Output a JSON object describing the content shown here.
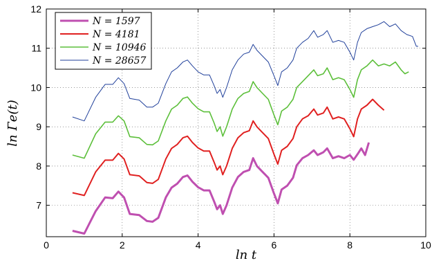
{
  "chart_data": {
    "type": "line",
    "xlabel": "ln t",
    "ylabel": "ln Γe(t)",
    "xlim": [
      0,
      10
    ],
    "ylim": [
      6.2,
      12
    ],
    "xticks": [
      0,
      2,
      4,
      6,
      8,
      10
    ],
    "yticks": [
      7,
      8,
      9,
      10,
      11,
      12
    ],
    "xtick_labels": [
      "0",
      "2",
      "4",
      "6",
      "8",
      "10"
    ],
    "ytick_labels": [
      "7",
      "8",
      "9",
      "10",
      "11",
      "12"
    ],
    "grid": true,
    "legend_position": "top-left",
    "series": [
      {
        "name": "N = 1597",
        "color": "#bf4fb0",
        "points": [
          [
            0.69,
            6.35
          ],
          [
            1.0,
            6.28
          ],
          [
            1.3,
            6.85
          ],
          [
            1.55,
            7.2
          ],
          [
            1.75,
            7.18
          ],
          [
            1.9,
            7.35
          ],
          [
            2.05,
            7.2
          ],
          [
            2.2,
            6.78
          ],
          [
            2.45,
            6.75
          ],
          [
            2.65,
            6.6
          ],
          [
            2.8,
            6.58
          ],
          [
            2.95,
            6.68
          ],
          [
            3.15,
            7.2
          ],
          [
            3.3,
            7.45
          ],
          [
            3.45,
            7.55
          ],
          [
            3.6,
            7.72
          ],
          [
            3.72,
            7.76
          ],
          [
            3.85,
            7.6
          ],
          [
            4.0,
            7.46
          ],
          [
            4.15,
            7.38
          ],
          [
            4.3,
            7.38
          ],
          [
            4.42,
            7.1
          ],
          [
            4.5,
            6.9
          ],
          [
            4.58,
            7.0
          ],
          [
            4.65,
            6.78
          ],
          [
            4.75,
            7.0
          ],
          [
            4.9,
            7.45
          ],
          [
            5.05,
            7.72
          ],
          [
            5.2,
            7.85
          ],
          [
            5.35,
            7.9
          ],
          [
            5.45,
            8.2
          ],
          [
            5.55,
            8.0
          ],
          [
            5.7,
            7.85
          ],
          [
            5.85,
            7.7
          ],
          [
            6.0,
            7.3
          ],
          [
            6.1,
            7.05
          ],
          [
            6.2,
            7.4
          ],
          [
            6.35,
            7.5
          ],
          [
            6.5,
            7.7
          ],
          [
            6.6,
            8.02
          ],
          [
            6.75,
            8.2
          ],
          [
            6.9,
            8.28
          ],
          [
            7.05,
            8.4
          ],
          [
            7.15,
            8.28
          ],
          [
            7.3,
            8.35
          ],
          [
            7.4,
            8.45
          ],
          [
            7.55,
            8.2
          ],
          [
            7.7,
            8.25
          ],
          [
            7.85,
            8.2
          ],
          [
            8.0,
            8.28
          ],
          [
            8.1,
            8.16
          ],
          [
            8.2,
            8.3
          ],
          [
            8.3,
            8.45
          ],
          [
            8.4,
            8.28
          ],
          [
            8.5,
            8.6
          ]
        ]
      },
      {
        "name": "N = 4181",
        "color": "#e02020",
        "points": [
          [
            0.69,
            7.32
          ],
          [
            1.0,
            7.25
          ],
          [
            1.3,
            7.85
          ],
          [
            1.55,
            8.15
          ],
          [
            1.75,
            8.15
          ],
          [
            1.9,
            8.32
          ],
          [
            2.05,
            8.18
          ],
          [
            2.2,
            7.78
          ],
          [
            2.45,
            7.75
          ],
          [
            2.65,
            7.58
          ],
          [
            2.8,
            7.56
          ],
          [
            2.95,
            7.66
          ],
          [
            3.15,
            8.18
          ],
          [
            3.3,
            8.45
          ],
          [
            3.45,
            8.55
          ],
          [
            3.6,
            8.72
          ],
          [
            3.72,
            8.76
          ],
          [
            3.85,
            8.6
          ],
          [
            4.0,
            8.46
          ],
          [
            4.15,
            8.38
          ],
          [
            4.3,
            8.38
          ],
          [
            4.42,
            8.1
          ],
          [
            4.5,
            7.9
          ],
          [
            4.58,
            8.0
          ],
          [
            4.65,
            7.78
          ],
          [
            4.75,
            8.0
          ],
          [
            4.9,
            8.45
          ],
          [
            5.05,
            8.72
          ],
          [
            5.2,
            8.85
          ],
          [
            5.35,
            8.9
          ],
          [
            5.45,
            9.15
          ],
          [
            5.55,
            9.0
          ],
          [
            5.7,
            8.85
          ],
          [
            5.85,
            8.7
          ],
          [
            6.0,
            8.3
          ],
          [
            6.1,
            8.05
          ],
          [
            6.2,
            8.4
          ],
          [
            6.35,
            8.5
          ],
          [
            6.5,
            8.7
          ],
          [
            6.6,
            9.0
          ],
          [
            6.75,
            9.2
          ],
          [
            6.9,
            9.28
          ],
          [
            7.05,
            9.45
          ],
          [
            7.15,
            9.3
          ],
          [
            7.3,
            9.35
          ],
          [
            7.4,
            9.5
          ],
          [
            7.55,
            9.2
          ],
          [
            7.7,
            9.25
          ],
          [
            7.85,
            9.2
          ],
          [
            8.0,
            8.95
          ],
          [
            8.1,
            8.75
          ],
          [
            8.2,
            9.2
          ],
          [
            8.3,
            9.45
          ],
          [
            8.45,
            9.55
          ],
          [
            8.6,
            9.7
          ],
          [
            8.75,
            9.55
          ],
          [
            8.9,
            9.42
          ]
        ]
      },
      {
        "name": "N = 10946",
        "color": "#5cbf3a",
        "points": [
          [
            0.69,
            8.28
          ],
          [
            1.0,
            8.2
          ],
          [
            1.3,
            8.82
          ],
          [
            1.55,
            9.12
          ],
          [
            1.75,
            9.12
          ],
          [
            1.9,
            9.28
          ],
          [
            2.05,
            9.15
          ],
          [
            2.2,
            8.75
          ],
          [
            2.45,
            8.72
          ],
          [
            2.65,
            8.55
          ],
          [
            2.8,
            8.54
          ],
          [
            2.95,
            8.64
          ],
          [
            3.15,
            9.15
          ],
          [
            3.3,
            9.45
          ],
          [
            3.45,
            9.55
          ],
          [
            3.6,
            9.72
          ],
          [
            3.72,
            9.76
          ],
          [
            3.85,
            9.6
          ],
          [
            4.0,
            9.46
          ],
          [
            4.15,
            9.38
          ],
          [
            4.3,
            9.38
          ],
          [
            4.42,
            9.1
          ],
          [
            4.5,
            8.88
          ],
          [
            4.58,
            9.0
          ],
          [
            4.65,
            8.76
          ],
          [
            4.75,
            9.0
          ],
          [
            4.9,
            9.45
          ],
          [
            5.05,
            9.72
          ],
          [
            5.2,
            9.85
          ],
          [
            5.35,
            9.9
          ],
          [
            5.45,
            10.15
          ],
          [
            5.55,
            10.0
          ],
          [
            5.7,
            9.85
          ],
          [
            5.85,
            9.7
          ],
          [
            6.0,
            9.3
          ],
          [
            6.1,
            9.05
          ],
          [
            6.2,
            9.4
          ],
          [
            6.35,
            9.5
          ],
          [
            6.5,
            9.7
          ],
          [
            6.6,
            10.0
          ],
          [
            6.75,
            10.15
          ],
          [
            6.9,
            10.3
          ],
          [
            7.05,
            10.45
          ],
          [
            7.15,
            10.3
          ],
          [
            7.3,
            10.35
          ],
          [
            7.4,
            10.5
          ],
          [
            7.55,
            10.2
          ],
          [
            7.7,
            10.25
          ],
          [
            7.85,
            10.2
          ],
          [
            8.0,
            9.95
          ],
          [
            8.1,
            9.75
          ],
          [
            8.2,
            10.2
          ],
          [
            8.3,
            10.45
          ],
          [
            8.45,
            10.55
          ],
          [
            8.6,
            10.7
          ],
          [
            8.75,
            10.55
          ],
          [
            8.9,
            10.6
          ],
          [
            9.05,
            10.55
          ],
          [
            9.2,
            10.65
          ],
          [
            9.35,
            10.45
          ],
          [
            9.45,
            10.35
          ],
          [
            9.55,
            10.4
          ]
        ]
      },
      {
        "name": "N = 28657",
        "color": "#1f3f9a",
        "points": [
          [
            0.69,
            9.25
          ],
          [
            1.0,
            9.15
          ],
          [
            1.3,
            9.75
          ],
          [
            1.55,
            10.08
          ],
          [
            1.75,
            10.08
          ],
          [
            1.9,
            10.25
          ],
          [
            2.05,
            10.1
          ],
          [
            2.2,
            9.72
          ],
          [
            2.45,
            9.68
          ],
          [
            2.65,
            9.5
          ],
          [
            2.8,
            9.5
          ],
          [
            2.95,
            9.6
          ],
          [
            3.15,
            10.1
          ],
          [
            3.3,
            10.4
          ],
          [
            3.45,
            10.5
          ],
          [
            3.6,
            10.65
          ],
          [
            3.72,
            10.7
          ],
          [
            3.85,
            10.55
          ],
          [
            4.0,
            10.4
          ],
          [
            4.15,
            10.32
          ],
          [
            4.3,
            10.32
          ],
          [
            4.42,
            10.05
          ],
          [
            4.5,
            9.85
          ],
          [
            4.58,
            9.95
          ],
          [
            4.65,
            9.75
          ],
          [
            4.75,
            10.0
          ],
          [
            4.9,
            10.45
          ],
          [
            5.05,
            10.7
          ],
          [
            5.2,
            10.85
          ],
          [
            5.35,
            10.9
          ],
          [
            5.45,
            11.1
          ],
          [
            5.55,
            10.95
          ],
          [
            5.7,
            10.8
          ],
          [
            5.85,
            10.65
          ],
          [
            6.0,
            10.3
          ],
          [
            6.1,
            10.05
          ],
          [
            6.2,
            10.4
          ],
          [
            6.35,
            10.5
          ],
          [
            6.5,
            10.7
          ],
          [
            6.6,
            11.0
          ],
          [
            6.75,
            11.15
          ],
          [
            6.9,
            11.25
          ],
          [
            7.05,
            11.45
          ],
          [
            7.15,
            11.28
          ],
          [
            7.3,
            11.35
          ],
          [
            7.4,
            11.45
          ],
          [
            7.55,
            11.15
          ],
          [
            7.7,
            11.2
          ],
          [
            7.85,
            11.15
          ],
          [
            8.0,
            10.9
          ],
          [
            8.1,
            10.7
          ],
          [
            8.2,
            11.15
          ],
          [
            8.3,
            11.4
          ],
          [
            8.45,
            11.5
          ],
          [
            8.6,
            11.55
          ],
          [
            8.75,
            11.6
          ],
          [
            8.9,
            11.68
          ],
          [
            9.05,
            11.55
          ],
          [
            9.2,
            11.62
          ],
          [
            9.35,
            11.45
          ],
          [
            9.5,
            11.35
          ],
          [
            9.65,
            11.3
          ],
          [
            9.75,
            11.05
          ],
          [
            9.8,
            11.05
          ]
        ]
      }
    ]
  }
}
